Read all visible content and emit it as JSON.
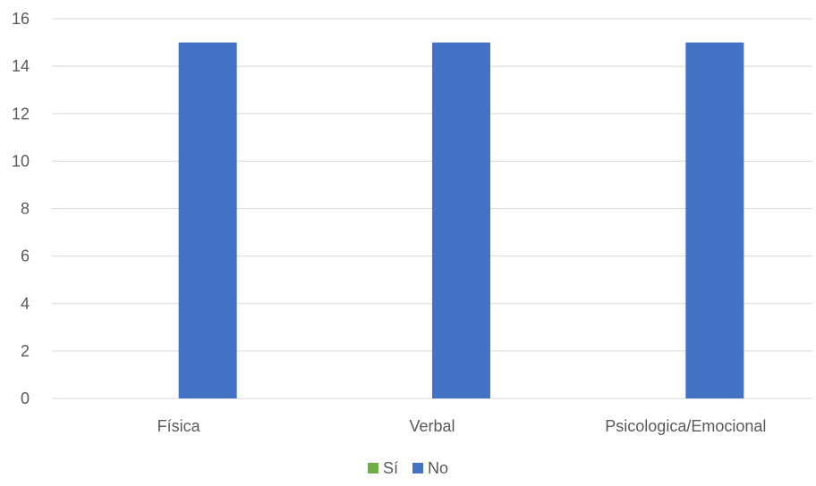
{
  "chart_data": {
    "type": "bar",
    "categories": [
      "Física",
      "Verbal",
      "Psicologica/Emocional"
    ],
    "series": [
      {
        "name": "Sí",
        "color": "#70AD47",
        "values": [
          0,
          0,
          0
        ]
      },
      {
        "name": "No",
        "color": "#4472C4",
        "values": [
          15,
          15,
          15
        ]
      }
    ],
    "ylim": [
      0,
      16
    ],
    "yticks": [
      0,
      2,
      4,
      6,
      8,
      10,
      12,
      14,
      16
    ],
    "grid": true,
    "legend_position": "bottom"
  }
}
